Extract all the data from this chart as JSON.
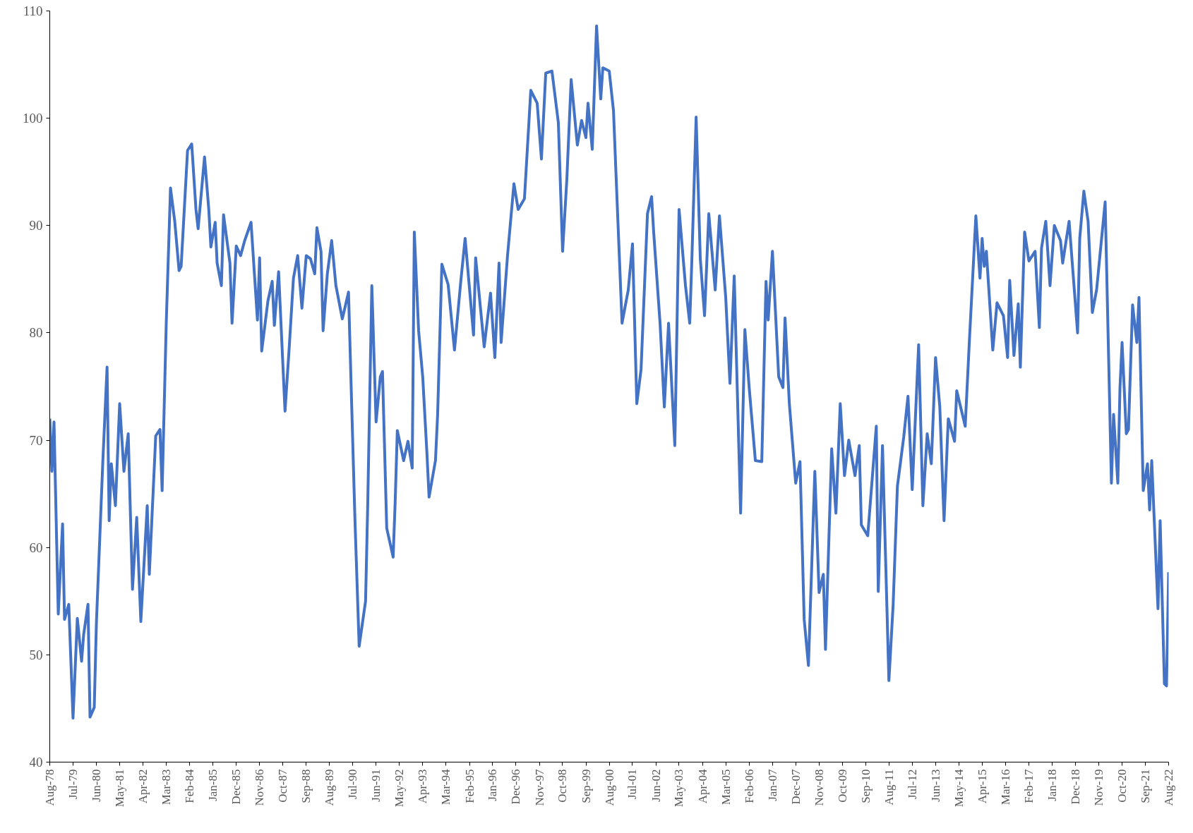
{
  "chart_data": {
    "type": "line",
    "marker": "none",
    "line_style": "solid",
    "grid": false,
    "xlim": [
      "1978-08",
      "2022-08"
    ],
    "ylim": [
      40,
      110
    ],
    "yticks": [
      40,
      50,
      60,
      70,
      80,
      90,
      100,
      110
    ],
    "xticks": [
      {
        "value": "1978-08",
        "label": "Aug-78"
      },
      {
        "value": "1979-07",
        "label": "Jul-79"
      },
      {
        "value": "1980-06",
        "label": "Jun-80"
      },
      {
        "value": "1981-05",
        "label": "May-81"
      },
      {
        "value": "1982-04",
        "label": "Apr-82"
      },
      {
        "value": "1983-03",
        "label": "Mar-83"
      },
      {
        "value": "1984-02",
        "label": "Feb-84"
      },
      {
        "value": "1985-01",
        "label": "Jan-85"
      },
      {
        "value": "1985-12",
        "label": "Dec-85"
      },
      {
        "value": "1986-11",
        "label": "Nov-86"
      },
      {
        "value": "1987-10",
        "label": "Oct-87"
      },
      {
        "value": "1988-09",
        "label": "Sep-88"
      },
      {
        "value": "1989-08",
        "label": "Aug-89"
      },
      {
        "value": "1990-07",
        "label": "Jul-90"
      },
      {
        "value": "1991-06",
        "label": "Jun-91"
      },
      {
        "value": "1992-05",
        "label": "May-92"
      },
      {
        "value": "1993-04",
        "label": "Apr-93"
      },
      {
        "value": "1994-03",
        "label": "Mar-94"
      },
      {
        "value": "1995-02",
        "label": "Feb-95"
      },
      {
        "value": "1996-01",
        "label": "Jan-96"
      },
      {
        "value": "1996-12",
        "label": "Dec-96"
      },
      {
        "value": "1997-11",
        "label": "Nov-97"
      },
      {
        "value": "1998-10",
        "label": "Oct-98"
      },
      {
        "value": "1999-09",
        "label": "Sep-99"
      },
      {
        "value": "2000-08",
        "label": "Aug-00"
      },
      {
        "value": "2001-07",
        "label": "Jul-01"
      },
      {
        "value": "2002-06",
        "label": "Jun-02"
      },
      {
        "value": "2003-05",
        "label": "May-03"
      },
      {
        "value": "2004-04",
        "label": "Apr-04"
      },
      {
        "value": "2005-03",
        "label": "Mar-05"
      },
      {
        "value": "2006-02",
        "label": "Feb-06"
      },
      {
        "value": "2007-01",
        "label": "Jan-07"
      },
      {
        "value": "2007-12",
        "label": "Dec-07"
      },
      {
        "value": "2008-11",
        "label": "Nov-08"
      },
      {
        "value": "2009-10",
        "label": "Oct-09"
      },
      {
        "value": "2010-09",
        "label": "Sep-10"
      },
      {
        "value": "2011-08",
        "label": "Aug-11"
      },
      {
        "value": "2012-07",
        "label": "Jul-12"
      },
      {
        "value": "2013-06",
        "label": "Jun-13"
      },
      {
        "value": "2014-05",
        "label": "May-14"
      },
      {
        "value": "2015-04",
        "label": "Apr-15"
      },
      {
        "value": "2016-03",
        "label": "Mar-16"
      },
      {
        "value": "2017-02",
        "label": "Feb-17"
      },
      {
        "value": "2018-01",
        "label": "Jan-18"
      },
      {
        "value": "2018-12",
        "label": "Dec-18"
      },
      {
        "value": "2019-11",
        "label": "Nov-19"
      },
      {
        "value": "2020-10",
        "label": "Oct-20"
      },
      {
        "value": "2021-09",
        "label": "Sep-21"
      },
      {
        "value": "2022-08",
        "label": "Aug-22"
      }
    ],
    "series": [
      {
        "color": "#4472c4",
        "x": [
          "1978-08",
          "1978-09",
          "1978-10",
          "1978-12",
          "1979-02",
          "1979-03",
          "1979-05",
          "1979-07",
          "1979-09",
          "1979-11",
          "1979-12",
          "1980-02",
          "1980-03",
          "1980-05",
          "1980-06",
          "1980-09",
          "1980-11",
          "1980-12",
          "1981-01",
          "1981-03",
          "1981-05",
          "1981-07",
          "1981-09",
          "1981-11",
          "1982-01",
          "1982-03",
          "1982-06",
          "1982-07",
          "1982-10",
          "1982-12",
          "1983-01",
          "1983-03",
          "1983-05",
          "1983-07",
          "1983-09",
          "1983-10",
          "1984-01",
          "1984-03",
          "1984-05",
          "1984-06",
          "1984-09",
          "1984-11",
          "1984-12",
          "1985-02",
          "1985-03",
          "1985-05",
          "1985-06",
          "1985-09",
          "1985-10",
          "1985-12",
          "1986-02",
          "1986-04",
          "1986-07",
          "1986-10",
          "1986-11",
          "1986-12",
          "1987-03",
          "1987-05",
          "1987-06",
          "1987-08",
          "1987-11",
          "1988-01",
          "1988-03",
          "1988-05",
          "1988-07",
          "1988-09",
          "1988-11",
          "1989-01",
          "1989-02",
          "1989-04",
          "1989-05",
          "1989-07",
          "1989-09",
          "1989-11",
          "1990-02",
          "1990-05",
          "1990-06",
          "1990-08",
          "1990-10",
          "1991-01",
          "1991-02",
          "1991-04",
          "1991-06",
          "1991-08",
          "1991-09",
          "1991-11",
          "1992-02",
          "1992-03",
          "1992-04",
          "1992-07",
          "1992-09",
          "1992-11",
          "1992-12",
          "1993-02",
          "1993-04",
          "1993-06",
          "1993-07",
          "1993-10",
          "1993-11",
          "1994-01",
          "1994-04",
          "1994-07",
          "1994-10",
          "1994-12",
          "1995-04",
          "1995-05",
          "1995-09",
          "1995-12",
          "1996-02",
          "1996-04",
          "1996-05",
          "1996-08",
          "1996-11",
          "1997-01",
          "1997-04",
          "1997-07",
          "1997-10",
          "1997-12",
          "1998-02",
          "1998-05",
          "1998-08",
          "1998-10",
          "1998-12",
          "1999-02",
          "1999-05",
          "1999-07",
          "1999-09",
          "1999-10",
          "1999-12",
          "2000-02",
          "2000-04",
          "2000-05",
          "2000-08",
          "2000-10",
          "2000-12",
          "2001-02",
          "2001-05",
          "2001-07",
          "2001-09",
          "2001-11",
          "2002-02",
          "2002-04",
          "2002-05",
          "2002-08",
          "2002-10",
          "2002-12",
          "2003-03",
          "2003-05",
          "2003-08",
          "2003-10",
          "2003-11",
          "2004-01",
          "2004-03",
          "2004-05",
          "2004-07",
          "2004-10",
          "2004-12",
          "2005-03",
          "2005-05",
          "2005-07",
          "2005-10",
          "2005-12",
          "2006-02",
          "2006-05",
          "2006-08",
          "2006-10",
          "2006-11",
          "2007-01",
          "2007-04",
          "2007-06",
          "2007-07",
          "2007-09",
          "2007-12",
          "2008-02",
          "2008-04",
          "2008-06",
          "2008-09",
          "2008-11",
          "2009-01",
          "2009-02",
          "2009-05",
          "2009-07",
          "2009-09",
          "2009-11",
          "2010-01",
          "2010-04",
          "2010-06",
          "2010-07",
          "2010-10",
          "2011-02",
          "2011-03",
          "2011-05",
          "2011-08",
          "2011-10",
          "2011-12",
          "2012-03",
          "2012-05",
          "2012-07",
          "2012-10",
          "2012-12",
          "2013-02",
          "2013-04",
          "2013-06",
          "2013-08",
          "2013-10",
          "2013-12",
          "2014-03",
          "2014-04",
          "2014-08",
          "2014-10",
          "2015-01",
          "2015-03",
          "2015-04",
          "2015-05",
          "2015-06",
          "2015-09",
          "2015-11",
          "2016-02",
          "2016-04",
          "2016-05",
          "2016-07",
          "2016-09",
          "2016-10",
          "2016-12",
          "2017-02",
          "2017-05",
          "2017-07",
          "2017-08",
          "2017-10",
          "2017-12",
          "2018-02",
          "2018-05",
          "2018-06",
          "2018-09",
          "2019-01",
          "2019-02",
          "2019-04",
          "2019-06",
          "2019-08",
          "2019-10",
          "2020-02",
          "2020-05",
          "2020-06",
          "2020-08",
          "2020-09",
          "2020-10",
          "2020-12",
          "2021-01",
          "2021-03",
          "2021-05",
          "2021-06",
          "2021-08",
          "2021-10",
          "2021-11",
          "2021-12",
          "2022-03",
          "2022-04",
          "2022-06",
          "2022-07",
          "2022-08"
        ],
        "values": [
          72.0,
          67.1,
          71.7,
          53.8,
          62.2,
          53.3,
          54.7,
          44.1,
          53.4,
          49.4,
          51.9,
          54.7,
          44.2,
          45.1,
          53.0,
          68.0,
          76.8,
          62.5,
          67.8,
          63.9,
          73.4,
          67.1,
          70.6,
          56.1,
          62.8,
          53.1,
          63.9,
          57.5,
          70.4,
          71.0,
          65.3,
          80.9,
          93.5,
          90.4,
          85.8,
          86.2,
          97.0,
          97.6,
          91.5,
          89.7,
          96.4,
          91.5,
          88.0,
          90.3,
          86.5,
          84.4,
          91.0,
          86.5,
          80.9,
          88.1,
          87.2,
          88.6,
          90.3,
          81.2,
          87.0,
          78.3,
          83.0,
          84.8,
          80.7,
          85.7,
          72.7,
          78.7,
          85.1,
          87.2,
          82.3,
          87.2,
          86.9,
          85.5,
          89.8,
          87.6,
          80.2,
          85.5,
          88.6,
          84.4,
          81.3,
          83.8,
          76.6,
          62.7,
          50.8,
          55.0,
          64.0,
          84.4,
          71.7,
          75.9,
          76.4,
          61.8,
          59.1,
          64.2,
          70.9,
          68.1,
          69.9,
          67.4,
          89.4,
          80.2,
          75.9,
          68.7,
          64.7,
          68.1,
          72.4,
          86.4,
          84.5,
          78.4,
          84.9,
          88.8,
          79.8,
          87.0,
          78.7,
          83.7,
          77.7,
          86.5,
          79.1,
          87.2,
          93.9,
          91.5,
          92.5,
          102.6,
          101.4,
          96.2,
          104.2,
          104.4,
          99.6,
          87.6,
          94.3,
          103.6,
          97.5,
          99.8,
          98.2,
          101.4,
          97.1,
          108.6,
          101.8,
          104.7,
          104.4,
          100.7,
          90.8,
          80.9,
          84.0,
          88.3,
          73.4,
          76.6,
          91.1,
          92.7,
          89.4,
          80.9,
          73.1,
          80.9,
          69.5,
          91.5,
          84.4,
          80.9,
          86.9,
          100.1,
          86.9,
          81.6,
          91.1,
          84.0,
          90.9,
          83.3,
          75.3,
          85.3,
          63.2,
          80.3,
          74.9,
          68.1,
          68.0,
          84.8,
          81.2,
          87.6,
          75.9,
          74.9,
          81.4,
          73.4,
          66.0,
          68.0,
          53.3,
          49.0,
          67.1,
          55.8,
          57.5,
          50.5,
          69.2,
          63.2,
          73.4,
          66.7,
          70.0,
          66.7,
          69.5,
          62.1,
          61.1,
          71.3,
          55.9,
          69.5,
          47.6,
          54.7,
          65.7,
          70.3,
          74.1,
          65.4,
          78.9,
          63.9,
          70.6,
          67.8,
          77.7,
          73.1,
          62.5,
          72.0,
          69.9,
          74.6,
          71.3,
          79.4,
          90.9,
          85.1,
          88.8,
          86.2,
          87.6,
          78.4,
          82.8,
          81.6,
          77.7,
          84.9,
          77.9,
          82.7,
          76.8,
          89.4,
          86.7,
          87.6,
          80.5,
          87.9,
          90.4,
          84.4,
          90.0,
          88.6,
          86.5,
          90.4,
          80.0,
          88.8,
          93.2,
          90.4,
          81.9,
          84.0,
          92.2,
          66.0,
          72.4,
          66.0,
          74.9,
          79.1,
          70.6,
          71.0,
          82.6,
          79.1,
          83.3,
          65.3,
          67.8,
          63.5,
          68.1,
          54.3,
          62.5,
          47.3,
          47.1,
          57.7
        ]
      }
    ]
  }
}
